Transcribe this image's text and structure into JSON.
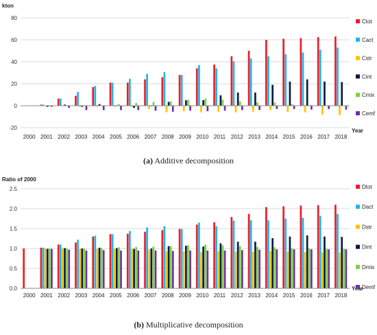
{
  "chart_data": [
    {
      "type": "bar",
      "ylabel": "kton",
      "xlabel": "Year",
      "ylim": [
        -20,
        80
      ],
      "yticks": [
        -20,
        0,
        20,
        40,
        60,
        80
      ],
      "grid": true,
      "legend_position": "right",
      "categories": [
        "2000",
        "2001",
        "2002",
        "2003",
        "2004",
        "2005",
        "2006",
        "2007",
        "2008",
        "2009",
        "2010",
        "2011",
        "2012",
        "2013",
        "2014",
        "2015",
        "2016",
        "2017",
        "2018"
      ],
      "series": [
        {
          "name": "Ctot",
          "color": "#ee1c25",
          "values": [
            0,
            1,
            6.5,
            9,
            17,
            21,
            21,
            24,
            26,
            28,
            34,
            37.5,
            45,
            50,
            60,
            61,
            61.5,
            62.5,
            63
          ]
        },
        {
          "name": "Cact",
          "color": "#1fb5ea",
          "values": [
            0,
            1,
            6.5,
            12.5,
            18,
            21,
            24.5,
            29,
            30.5,
            28,
            37,
            34,
            40.5,
            43,
            45,
            47,
            48.5,
            51,
            53
          ]
        },
        {
          "name": "Cstr",
          "color": "#ffc000",
          "values": [
            0,
            0,
            0,
            -1,
            -1,
            -1,
            -1,
            -3,
            -6,
            -5,
            -6,
            -5.5,
            -6,
            -5.5,
            -4,
            -5.5,
            -6,
            -8,
            -8.5
          ]
        },
        {
          "name": "Cint",
          "color": "#0c1a45",
          "values": [
            0,
            -1,
            1,
            -1,
            1.5,
            0.5,
            -2,
            -0.5,
            3.5,
            5,
            5,
            9.5,
            12,
            12,
            19,
            22,
            24,
            22,
            21.5
          ]
        },
        {
          "name": "Cmix",
          "color": "#7ad43e",
          "values": [
            0,
            0.5,
            0.5,
            0.5,
            0.5,
            1.5,
            2.5,
            3.5,
            4,
            5.5,
            6.5,
            5.5,
            4,
            3,
            3,
            1.5,
            0.5,
            0,
            0
          ]
        },
        {
          "name": "Cemf",
          "color": "#7030a0",
          "values": [
            0,
            -1,
            -2,
            -4,
            -4,
            -4,
            -4,
            -4.5,
            -5.5,
            -4.5,
            -5,
            -4.5,
            -4,
            -4,
            -3,
            -3,
            -3.5,
            -3,
            -3.5
          ]
        }
      ],
      "caption_label": "(a)",
      "caption_text": " Additive decomposition"
    },
    {
      "type": "bar",
      "ylabel": "Ratio of 2000",
      "xlabel": "Year",
      "ylim": [
        0.0,
        2.5
      ],
      "yticks": [
        0.0,
        0.5,
        1.0,
        1.5,
        2.0,
        2.5
      ],
      "grid": true,
      "legend_position": "right",
      "categories": [
        "2000",
        "2001",
        "2002",
        "2003",
        "2004",
        "2005",
        "2006",
        "2007",
        "2008",
        "2009",
        "2010",
        "2011",
        "2012",
        "2013",
        "2014",
        "2015",
        "2016",
        "2017",
        "2018"
      ],
      "series": [
        {
          "name": "Dtot",
          "color": "#ee1c25",
          "values": [
            1.0,
            1.02,
            1.1,
            1.15,
            1.3,
            1.36,
            1.37,
            1.42,
            1.46,
            1.49,
            1.6,
            1.66,
            1.79,
            1.87,
            2.04,
            2.06,
            2.08,
            2.09,
            2.1
          ]
        },
        {
          "name": "Dact",
          "color": "#1fb5ea",
          "values": [
            0,
            1.02,
            1.1,
            1.22,
            1.32,
            1.36,
            1.44,
            1.53,
            1.56,
            1.49,
            1.65,
            1.56,
            1.7,
            1.71,
            1.71,
            1.75,
            1.77,
            1.82,
            1.87
          ]
        },
        {
          "name": "Dstr",
          "color": "#ffc000",
          "values": [
            0,
            1.0,
            1.0,
            0.99,
            0.99,
            0.99,
            0.99,
            0.97,
            0.93,
            0.93,
            0.91,
            0.93,
            0.92,
            0.92,
            0.94,
            0.92,
            0.91,
            0.9,
            0.9
          ]
        },
        {
          "name": "Dint",
          "color": "#0c1a45",
          "values": [
            0,
            0.99,
            1.01,
            1.0,
            1.02,
            1.01,
            0.99,
            1.0,
            1.06,
            1.07,
            1.05,
            1.13,
            1.17,
            1.17,
            1.26,
            1.3,
            1.33,
            1.3,
            1.29
          ]
        },
        {
          "name": "Dmix",
          "color": "#7ad43e",
          "values": [
            0,
            1.0,
            1.0,
            1.0,
            1.01,
            1.03,
            1.04,
            1.05,
            1.06,
            1.08,
            1.1,
            1.08,
            1.06,
            1.04,
            1.03,
            1.0,
            1.0,
            0.99,
            0.99
          ]
        },
        {
          "name": "Demf",
          "color": "#7030a0",
          "values": [
            0,
            0.99,
            0.97,
            0.95,
            0.96,
            0.95,
            0.95,
            0.95,
            0.94,
            0.95,
            0.95,
            0.95,
            0.96,
            0.97,
            0.98,
            0.98,
            0.98,
            0.98,
            0.98
          ]
        }
      ],
      "caption_label": "(b)",
      "caption_text": " Multiplicative decomposition"
    }
  ]
}
